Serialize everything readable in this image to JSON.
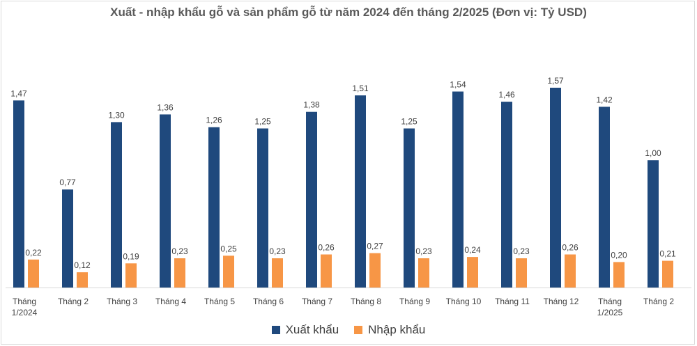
{
  "chart_data": {
    "type": "bar",
    "title": "Xuất - nhập khẩu gỗ và sản phẩm gỗ từ năm 2024 đến tháng 2/2025 (Đơn vị: Tỷ USD)",
    "categories": [
      [
        "Tháng",
        "1/2024"
      ],
      [
        "Tháng 2"
      ],
      [
        "Tháng 3"
      ],
      [
        "Tháng 4"
      ],
      [
        "Tháng 5"
      ],
      [
        "Tháng 6"
      ],
      [
        "Tháng 7"
      ],
      [
        "Tháng 8"
      ],
      [
        "Tháng 9"
      ],
      [
        "Tháng 10"
      ],
      [
        "Tháng 11"
      ],
      [
        "Tháng 12"
      ],
      [
        "Tháng",
        "1/2025"
      ],
      [
        "Tháng 2"
      ]
    ],
    "series": [
      {
        "name": "Xuất khẩu",
        "color": "#1f497d",
        "values": [
          1.47,
          0.77,
          1.3,
          1.36,
          1.26,
          1.25,
          1.38,
          1.51,
          1.25,
          1.54,
          1.46,
          1.57,
          1.42,
          1.0
        ],
        "labels": [
          "1,47",
          "0,77",
          "1,30",
          "1,36",
          "1,26",
          "1,25",
          "1,38",
          "1,51",
          "1,25",
          "1,54",
          "1,46",
          "1,57",
          "1,42",
          "1,00"
        ]
      },
      {
        "name": "Nhập khẩu",
        "color": "#f79646",
        "values": [
          0.22,
          0.12,
          0.19,
          0.23,
          0.25,
          0.23,
          0.26,
          0.27,
          0.23,
          0.24,
          0.23,
          0.26,
          0.2,
          0.21
        ],
        "labels": [
          "0,22",
          "0,12",
          "0,19",
          "0,23",
          "0,25",
          "0,23",
          "0,26",
          "0,27",
          "0,23",
          "0,24",
          "0,23",
          "0,26",
          "0,20",
          "0,21"
        ]
      }
    ],
    "ylim": [
      0,
      1.57
    ],
    "grid": false,
    "legend_position": "bottom"
  }
}
